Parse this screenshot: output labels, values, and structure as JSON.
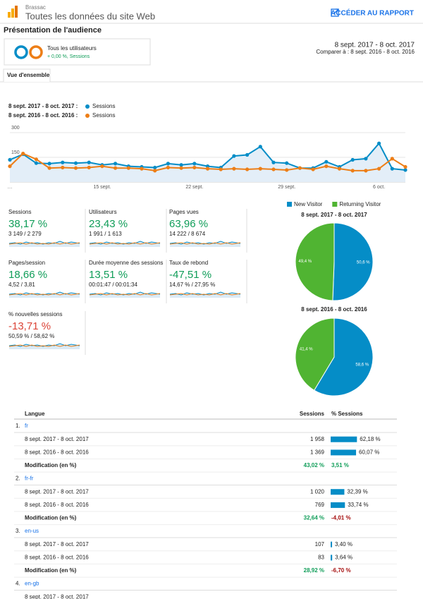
{
  "header": {
    "account": "Brassac",
    "property": "Toutes les données du site Web",
    "report_link": "ACCÉDER AU RAPPORT",
    "title": "Présentation de l'audience"
  },
  "segment": {
    "name": "Tous les utilisateurs",
    "change": "+ 0,00 %, Sessions"
  },
  "date_range": {
    "current": "8 sept. 2017 - 8 oct. 2017",
    "compare": "Comparer à : 8 sept. 2016 - 8 oct. 2016"
  },
  "tab": "Vue d'ensemble",
  "chart_data": [
    {
      "type": "line",
      "categories": [
        "…",
        null,
        null,
        null,
        null,
        null,
        null,
        "15 sept.",
        null,
        null,
        null,
        null,
        null,
        null,
        "22 sept.",
        null,
        null,
        null,
        null,
        null,
        null,
        "29 sept.",
        null,
        null,
        null,
        null,
        null,
        null,
        "6 oct.",
        null,
        null
      ],
      "series": [
        {
          "period": "8 sept. 2017 - 8 oct. 2017 :",
          "name": "Sessions",
          "color": "#058dc7",
          "values": [
            135,
            169,
            115,
            112,
            119,
            115,
            119,
            104,
            112,
            96,
            92,
            88,
            112,
            104,
            112,
            96,
            88,
            158,
            165,
            215,
            119,
            115,
            85,
            85,
            123,
            92,
            135,
            142,
            235,
            81,
            73
          ]
        },
        {
          "period": "8 sept. 2016 - 8 oct. 2016 :",
          "name": "Sessions",
          "color": "#ed7e17",
          "values": [
            96,
            173,
            138,
            85,
            88,
            85,
            88,
            96,
            85,
            85,
            81,
            69,
            88,
            85,
            88,
            81,
            77,
            81,
            77,
            81,
            77,
            73,
            85,
            77,
            96,
            81,
            69,
            69,
            81,
            142,
            92
          ]
        }
      ],
      "ylim": [
        0,
        300
      ],
      "yticks": [
        150,
        300
      ],
      "grid": true
    },
    {
      "type": "pie",
      "title": "8 sept. 2017 - 8 oct. 2017",
      "values": [
        50.6,
        49.4
      ],
      "value_labels": [
        "50,6 %",
        "49,4 %"
      ]
    },
    {
      "type": "pie",
      "title": "8 sept. 2016 - 8 oct. 2016",
      "values": [
        58.6,
        41.4
      ],
      "value_labels": [
        "58,6 %",
        "41,4 %"
      ]
    }
  ],
  "pie_legend": [
    {
      "name": "New Visitor",
      "color": "#058dc7"
    },
    {
      "name": "Returning Visitor",
      "color": "#50b432"
    }
  ],
  "metrics": [
    {
      "name": "Sessions",
      "value": "38,17 %",
      "detail": "3 149 / 2 279",
      "color": "#0f9d58"
    },
    {
      "name": "Utilisateurs",
      "value": "23,43 %",
      "detail": "1 991 / 1 613",
      "color": "#0f9d58"
    },
    {
      "name": "Pages vues",
      "value": "63,96 %",
      "detail": "14 222 / 8 674",
      "color": "#0f9d58"
    },
    {
      "name": "Pages/session",
      "value": "18,66 %",
      "detail": "4,52 / 3,81",
      "color": "#0f9d58"
    },
    {
      "name": "Durée moyenne des sessions",
      "value": "13,51 %",
      "detail": "00:01:47 / 00:01:34",
      "color": "#0f9d58"
    },
    {
      "name": "Taux de rebond",
      "value": "-47,51 %",
      "detail": "14,67 % / 27,95 %",
      "color": "#0f9d58"
    },
    {
      "name": "% nouvelles sessions",
      "value": "-13,71 %",
      "detail": "50,59 % / 58,62 %",
      "color": "#db4437"
    }
  ],
  "table": {
    "columns": [
      "Langue",
      "Sessions",
      "% Sessions"
    ],
    "groups": [
      {
        "index": "1.",
        "name": "fr",
        "rows": [
          [
            "8 sept. 2017 - 8 oct. 2017",
            "1 958",
            "62,18 %"
          ],
          [
            "8 sept. 2016 - 8 oct. 2016",
            "1 369",
            "60,07 %"
          ],
          [
            "Modification (en %)",
            "43,02 %",
            "3,51 %"
          ]
        ]
      },
      {
        "index": "2.",
        "name": "fr-fr",
        "rows": [
          [
            "8 sept. 2017 - 8 oct. 2017",
            "1 020",
            "32,39 %"
          ],
          [
            "8 sept. 2016 - 8 oct. 2016",
            "769",
            "33,74 %"
          ],
          [
            "Modification (en %)",
            "32,64 %",
            "-4,01 %"
          ]
        ]
      },
      {
        "index": "3.",
        "name": "en-us",
        "rows": [
          [
            "8 sept. 2017 - 8 oct. 2017",
            "107",
            "3,40 %"
          ],
          [
            "8 sept. 2016 - 8 oct. 2016",
            "83",
            "3,64 %"
          ],
          [
            "Modification (en %)",
            "28,92 %",
            "-6,70 %"
          ]
        ]
      },
      {
        "index": "4.",
        "name": "en-gb",
        "rows": [
          [
            "8 sept. 2017 - 8 oct. 2017"
          ]
        ]
      }
    ]
  }
}
